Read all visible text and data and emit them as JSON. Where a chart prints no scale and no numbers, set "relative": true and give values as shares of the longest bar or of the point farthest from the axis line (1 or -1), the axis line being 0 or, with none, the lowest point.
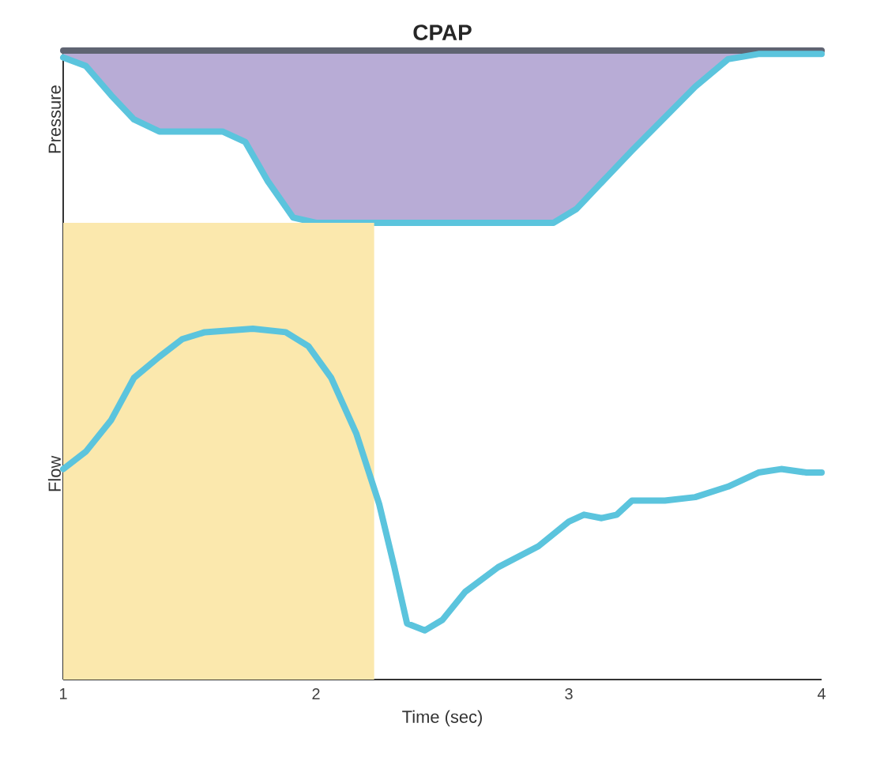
{
  "chart_data": [
    {
      "type": "line",
      "ylabel": "Pressure",
      "relative": true,
      "xlim": [
        1,
        4
      ],
      "xticks": [
        1,
        2,
        3,
        4
      ],
      "tick_labels": false,
      "legend": false,
      "series": [
        {
          "name": "CPAP",
          "color": "#5f6472",
          "x": [
            1,
            4
          ],
          "values": [
            1,
            1
          ]
        },
        {
          "color": "#5bc4dd",
          "x": [
            1.0,
            1.09,
            1.19,
            1.28,
            1.38,
            1.63,
            1.72,
            1.81,
            1.91,
            2.0,
            2.94,
            3.03,
            3.25,
            3.5,
            3.63,
            3.75,
            4.0
          ],
          "values": [
            0.96,
            0.91,
            0.74,
            0.6,
            0.53,
            0.53,
            0.47,
            0.24,
            0.03,
            0,
            0,
            0.08,
            0.42,
            0.79,
            0.95,
            0.98,
            0.98
          ],
          "lower": [
            0.96,
            0.91,
            0.74,
            0.6,
            0.53,
            0.53,
            0.47,
            0.24,
            0.03,
            0,
            0,
            0.08,
            0.42,
            0.79,
            0.95,
            0.98,
            0.98
          ],
          "upper": [
            1,
            1,
            1,
            1,
            1,
            1,
            1,
            1,
            1,
            1,
            1,
            1,
            1,
            1,
            1,
            1,
            1
          ]
        }
      ]
    },
    {
      "type": "line",
      "ylabel": "Flow",
      "xlabel": "Time (sec)",
      "relative": true,
      "xlim": [
        1,
        4
      ],
      "xticks": [
        1,
        2,
        3,
        4
      ],
      "legend": false,
      "bands": [
        {
          "axis": "x",
          "from": 1,
          "to": 2.23,
          "color": "#fbe8ad"
        }
      ],
      "series": [
        {
          "color": "#5bc4dd",
          "x": [
            1.0,
            1.09,
            1.19,
            1.28,
            1.38,
            1.47,
            1.56,
            1.75,
            1.88,
            1.97,
            2.06,
            2.16,
            2.25,
            2.31,
            2.36,
            2.43,
            2.5,
            2.59,
            2.72,
            2.88,
            3.0,
            3.06,
            3.13,
            3.19,
            3.25,
            3.38,
            3.5,
            3.63,
            3.75,
            3.84,
            3.94,
            4.0
          ],
          "values": [
            0.6,
            0.65,
            0.74,
            0.86,
            0.92,
            0.97,
            0.99,
            1.0,
            0.99,
            0.95,
            0.86,
            0.7,
            0.5,
            0.32,
            0.16,
            0.14,
            0.17,
            0.25,
            0.32,
            0.38,
            0.45,
            0.47,
            0.46,
            0.47,
            0.51,
            0.51,
            0.52,
            0.55,
            0.59,
            0.6,
            0.59,
            0.59
          ]
        }
      ]
    }
  ]
}
